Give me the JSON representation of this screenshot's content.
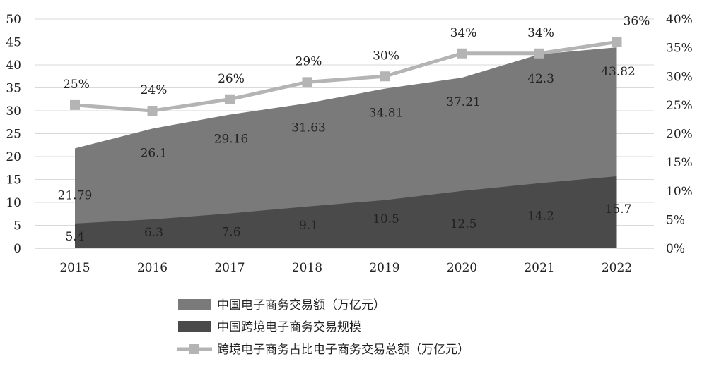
{
  "chart_data": {
    "type": "area",
    "categories": [
      "2015",
      "2016",
      "2017",
      "2018",
      "2019",
      "2020",
      "2021",
      "2022"
    ],
    "series": [
      {
        "name": "中国电子商务交易额（万亿元）",
        "kind": "area",
        "axis": "left",
        "values": [
          21.79,
          26.1,
          29.16,
          31.63,
          34.81,
          37.21,
          42.3,
          43.82
        ],
        "labels": [
          "21.79",
          "26.1",
          "29.16",
          "31.63",
          "34.81",
          "37.21",
          "42.3",
          "43.82"
        ],
        "color": "#7a7a7a"
      },
      {
        "name": "中国跨境电子商务交易规模",
        "kind": "area",
        "axis": "left",
        "values": [
          5.4,
          6.3,
          7.6,
          9.1,
          10.5,
          12.5,
          14.2,
          15.7
        ],
        "labels": [
          "5.4",
          "6.3",
          "7.6",
          "9.1",
          "10.5",
          "12.5",
          "14.2",
          "15.7"
        ],
        "color": "#4a4a4a"
      },
      {
        "name": "跨境电子商务占比电子商务交易总额（万亿元）",
        "kind": "line",
        "axis": "right",
        "values": [
          25,
          24,
          26,
          29,
          30,
          34,
          34,
          36
        ],
        "labels": [
          "25%",
          "24%",
          "26%",
          "29%",
          "30%",
          "34%",
          "34%",
          "36%"
        ],
        "color": "#b4b4b4"
      }
    ],
    "left_axis": {
      "ylim": [
        0,
        50
      ],
      "ticks": [
        "0",
        "5",
        "10",
        "15",
        "20",
        "25",
        "30",
        "35",
        "40",
        "45",
        "50"
      ]
    },
    "right_axis": {
      "ylim": [
        0,
        40
      ],
      "ticks": [
        "0%",
        "5%",
        "10%",
        "15%",
        "20%",
        "25%",
        "30%",
        "35%",
        "40%"
      ]
    },
    "grid": "horizontal",
    "legend_position": "bottom-center",
    "label_color": "#222222",
    "grid_color": "#d9d9d9"
  }
}
